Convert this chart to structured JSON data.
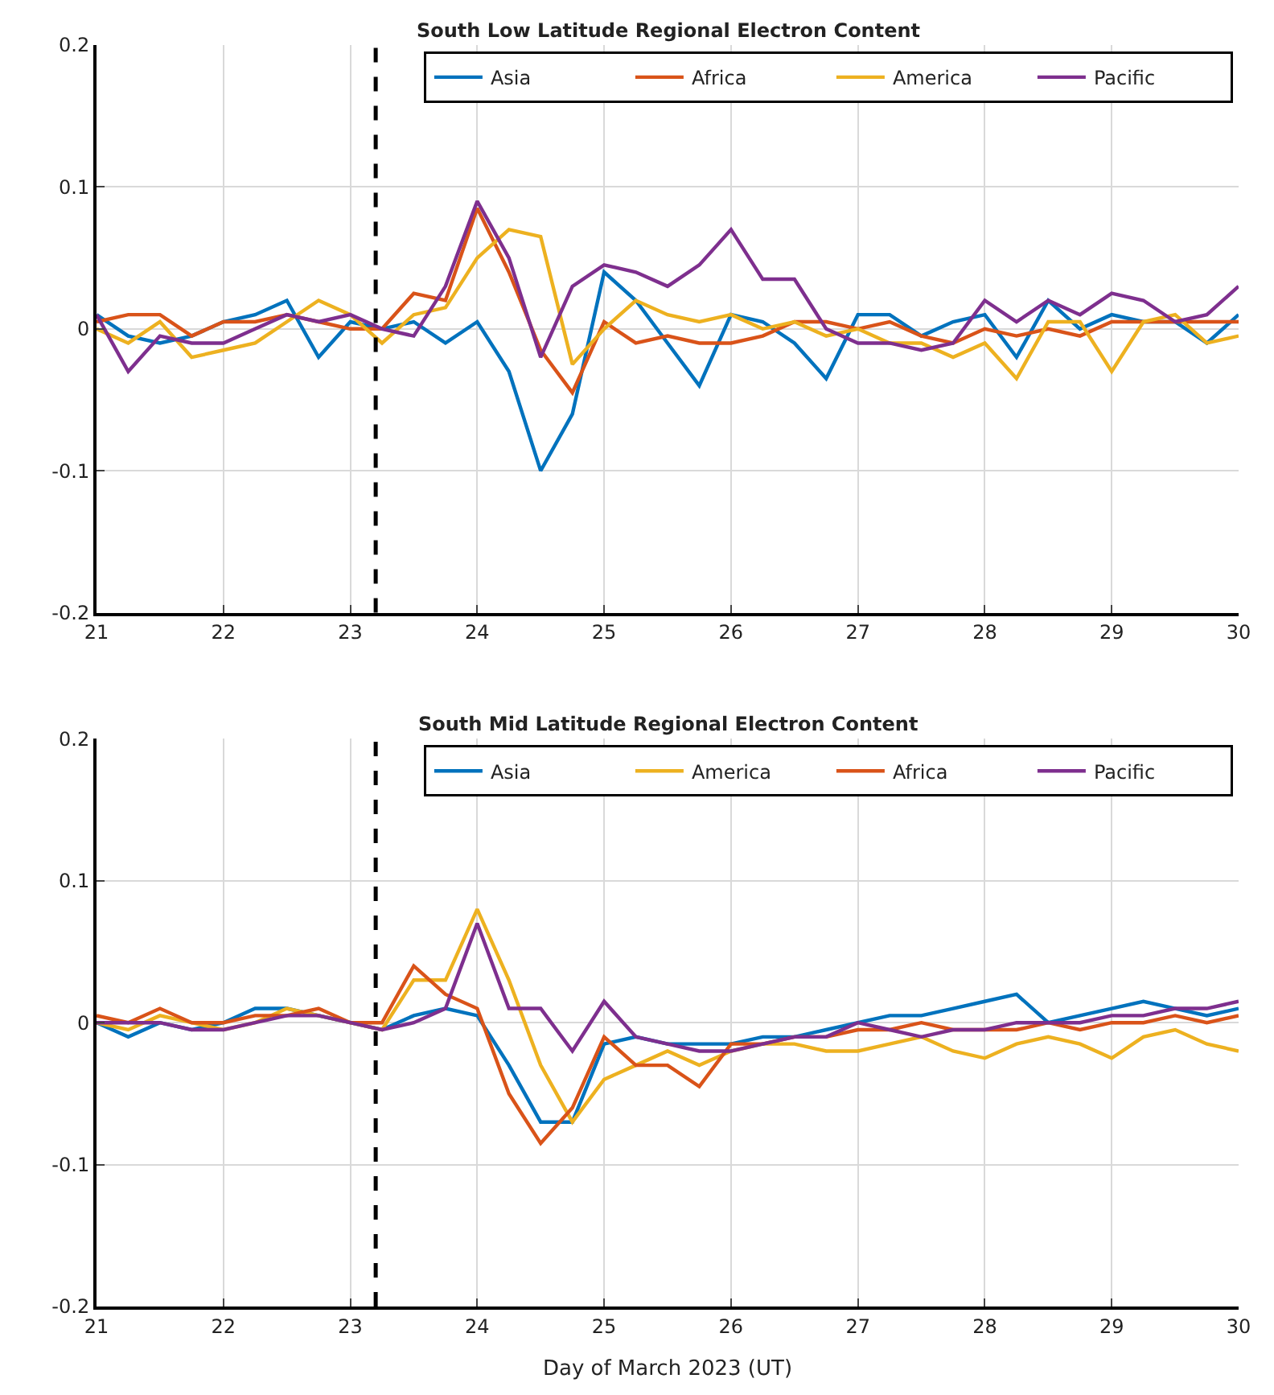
{
  "chart_data": [
    {
      "type": "line",
      "title": "South Low Latitude Regional Electron Content",
      "x": [
        21,
        21.25,
        21.5,
        21.75,
        22,
        22.25,
        22.5,
        22.75,
        23,
        23.25,
        23.5,
        23.75,
        24,
        24.25,
        24.5,
        24.75,
        25,
        25.25,
        25.5,
        25.75,
        26,
        26.25,
        26.5,
        26.75,
        27,
        27.25,
        27.5,
        27.75,
        28,
        28.25,
        28.5,
        28.75,
        29,
        29.25,
        29.5,
        29.75,
        30
      ],
      "series": [
        {
          "name": "Asia",
          "color": "#0072bd",
          "values": [
            0.01,
            -0.005,
            -0.01,
            -0.005,
            0.005,
            0.01,
            0.02,
            -0.02,
            0.005,
            0,
            0.005,
            -0.01,
            0.005,
            -0.03,
            -0.1,
            -0.06,
            0.04,
            0.02,
            -0.01,
            -0.04,
            0.01,
            0.005,
            -0.01,
            -0.035,
            0.01,
            0.01,
            -0.005,
            0.005,
            0.01,
            -0.02,
            0.02,
            0,
            0.01,
            0.005,
            0.005,
            -0.01,
            0.01
          ]
        },
        {
          "name": "Africa",
          "color": "#d95319",
          "values": [
            0.005,
            0.01,
            0.01,
            -0.005,
            0.005,
            0.005,
            0.01,
            0.005,
            0,
            0,
            0.025,
            0.02,
            0.085,
            0.04,
            -0.015,
            -0.045,
            0.005,
            -0.01,
            -0.005,
            -0.01,
            -0.01,
            -0.005,
            0.005,
            0.005,
            0,
            0.005,
            -0.005,
            -0.01,
            0,
            -0.005,
            0,
            -0.005,
            0.005,
            0.005,
            0.005,
            0.005,
            0.005
          ]
        },
        {
          "name": "America",
          "color": "#edb120",
          "values": [
            0,
            -0.01,
            0.005,
            -0.02,
            -0.015,
            -0.01,
            0.005,
            0.02,
            0.01,
            -0.01,
            0.01,
            0.015,
            0.05,
            0.07,
            0.065,
            -0.025,
            0,
            0.02,
            0.01,
            0.005,
            0.01,
            0,
            0.005,
            -0.005,
            0,
            -0.01,
            -0.01,
            -0.02,
            -0.01,
            -0.035,
            0.005,
            0.005,
            -0.03,
            0.005,
            0.01,
            -0.01,
            -0.005
          ]
        },
        {
          "name": "Pacific",
          "color": "#7e2f8e",
          "values": [
            0.01,
            -0.03,
            -0.005,
            -0.01,
            -0.01,
            0,
            0.01,
            0.005,
            0.01,
            0,
            -0.005,
            0.03,
            0.09,
            0.05,
            -0.02,
            0.03,
            0.045,
            0.04,
            0.03,
            0.045,
            0.07,
            0.035,
            0.035,
            0,
            -0.01,
            -0.01,
            -0.015,
            -0.01,
            0.02,
            0.005,
            0.02,
            0.01,
            0.025,
            0.02,
            0.005,
            0.01,
            0.03
          ]
        }
      ],
      "xlim": [
        21,
        30
      ],
      "xticks": [
        21,
        22,
        23,
        24,
        25,
        26,
        27,
        28,
        29,
        30
      ],
      "ylim": [
        -0.2,
        0.2
      ],
      "yticks": [
        -0.2,
        -0.1,
        0,
        0.1,
        0.2
      ],
      "ref_lines": [
        {
          "axis": "x",
          "value": 23.2,
          "color": "#000000",
          "line_style": "dashed"
        }
      ],
      "grid": true,
      "legend": "top right",
      "line_style": "solid",
      "marker": "none"
    },
    {
      "type": "line",
      "title": "South Mid Latitude Regional Electron Content",
      "xlabel": "Day of March 2023 (UT)",
      "x": [
        21,
        21.25,
        21.5,
        21.75,
        22,
        22.25,
        22.5,
        22.75,
        23,
        23.25,
        23.5,
        23.75,
        24,
        24.25,
        24.5,
        24.75,
        25,
        25.25,
        25.5,
        25.75,
        26,
        26.25,
        26.5,
        26.75,
        27,
        27.25,
        27.5,
        27.75,
        28,
        28.25,
        28.5,
        28.75,
        29,
        29.25,
        29.5,
        29.75,
        30
      ],
      "series": [
        {
          "name": "Asia",
          "color": "#0072bd",
          "values": [
            0,
            -0.01,
            0,
            -0.005,
            0,
            0.01,
            0.01,
            0.005,
            0,
            -0.005,
            0.005,
            0.01,
            0.005,
            -0.03,
            -0.07,
            -0.07,
            -0.015,
            -0.01,
            -0.015,
            -0.015,
            -0.015,
            -0.01,
            -0.01,
            -0.005,
            0,
            0.005,
            0.005,
            0.01,
            0.015,
            0.02,
            0,
            0.005,
            0.01,
            0.015,
            0.01,
            0.005,
            0.01
          ]
        },
        {
          "name": "America",
          "color": "#edb120",
          "values": [
            0,
            -0.005,
            0.005,
            0,
            -0.005,
            0,
            0.01,
            0.005,
            0,
            -0.005,
            0.03,
            0.03,
            0.08,
            0.03,
            -0.03,
            -0.07,
            -0.04,
            -0.03,
            -0.02,
            -0.03,
            -0.02,
            -0.015,
            -0.015,
            -0.02,
            -0.02,
            -0.015,
            -0.01,
            -0.02,
            -0.025,
            -0.015,
            -0.01,
            -0.015,
            -0.025,
            -0.01,
            -0.005,
            -0.015,
            -0.02
          ]
        },
        {
          "name": "Africa",
          "color": "#d95319",
          "values": [
            0.005,
            0,
            0.01,
            0,
            0,
            0.005,
            0.005,
            0.01,
            0,
            0,
            0.04,
            0.02,
            0.01,
            -0.05,
            -0.085,
            -0.06,
            -0.01,
            -0.03,
            -0.03,
            -0.045,
            -0.015,
            -0.015,
            -0.01,
            -0.01,
            -0.005,
            -0.005,
            0,
            -0.005,
            -0.005,
            -0.005,
            0,
            -0.005,
            0,
            0,
            0.005,
            0,
            0.005
          ]
        },
        {
          "name": "Pacific",
          "color": "#7e2f8e",
          "values": [
            0,
            0,
            0,
            -0.005,
            -0.005,
            0,
            0.005,
            0.005,
            0,
            -0.005,
            0,
            0.01,
            0.07,
            0.01,
            0.01,
            -0.02,
            0.015,
            -0.01,
            -0.015,
            -0.02,
            -0.02,
            -0.015,
            -0.01,
            -0.01,
            0,
            -0.005,
            -0.01,
            -0.005,
            -0.005,
            0,
            0,
            0,
            0.005,
            0.005,
            0.01,
            0.01,
            0.015
          ]
        }
      ],
      "xlim": [
        21,
        30
      ],
      "xticks": [
        21,
        22,
        23,
        24,
        25,
        26,
        27,
        28,
        29,
        30
      ],
      "ylim": [
        -0.2,
        0.2
      ],
      "yticks": [
        -0.2,
        -0.1,
        0,
        0.1,
        0.2
      ],
      "ref_lines": [
        {
          "axis": "x",
          "value": 23.2,
          "color": "#000000",
          "line_style": "dashed"
        }
      ],
      "grid": true,
      "legend": "top right",
      "line_style": "solid",
      "marker": "none"
    }
  ]
}
